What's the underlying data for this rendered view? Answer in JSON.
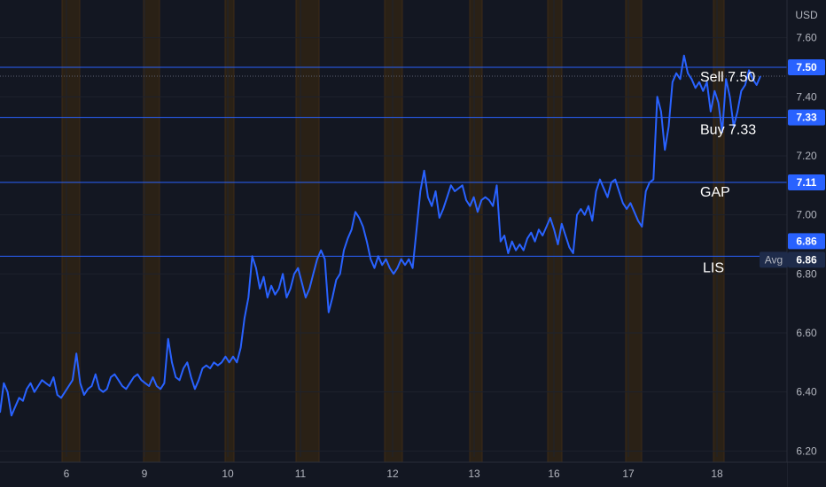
{
  "chart_data": {
    "type": "line",
    "currency": "USD",
    "y_axis": {
      "ticks": [
        "6.20",
        "6.40",
        "6.60",
        "6.80",
        "7.00",
        "7.20",
        "7.40",
        "7.60"
      ],
      "tick_values": [
        6.2,
        6.4,
        6.6,
        6.8,
        7.0,
        7.2,
        7.4,
        7.6
      ],
      "ylim": [
        6.18,
        7.68
      ]
    },
    "x_axis": {
      "ticks": [
        "6",
        "9",
        "10",
        "11",
        "12",
        "13",
        "16",
        "17",
        "18"
      ]
    },
    "colors": {
      "background": "#131722",
      "line": "#2962ff",
      "level": "#2962ff",
      "session_highlight": "#2a2116",
      "session_border": "#3c2a16",
      "grid": "#1e222d",
      "axis_text": "#b2b5be"
    },
    "levels": [
      {
        "label": "Sell 7.50",
        "value": 7.5,
        "price_tag": "7.50"
      },
      {
        "label": "Buy 7.33",
        "value": 7.33,
        "price_tag": "7.33"
      },
      {
        "label": "GAP",
        "value": 7.11,
        "price_tag": "7.11"
      },
      {
        "label": "LIS",
        "value": 6.86,
        "price_tag": "6.86"
      }
    ],
    "avg_marker": {
      "label": "Avg",
      "value": "6.86"
    },
    "series": [
      {
        "values": [
          6.33,
          6.43,
          6.4,
          6.32,
          6.35,
          6.38,
          6.37,
          6.41,
          6.43,
          6.4,
          6.42,
          6.44,
          6.43,
          6.42,
          6.45,
          6.39,
          6.38,
          6.4,
          6.42,
          6.44,
          6.53,
          6.43,
          6.39,
          6.41,
          6.42,
          6.46,
          6.41,
          6.4,
          6.41,
          6.45,
          6.46,
          6.44,
          6.42,
          6.41,
          6.43,
          6.45,
          6.46,
          6.44,
          6.43,
          6.42,
          6.45,
          6.42,
          6.41,
          6.43,
          6.58,
          6.5,
          6.45,
          6.44,
          6.48,
          6.5,
          6.45,
          6.41,
          6.44,
          6.48,
          6.49,
          6.48,
          6.5,
          6.49,
          6.5,
          6.52,
          6.5,
          6.52,
          6.5,
          6.55,
          6.65,
          6.72,
          6.86,
          6.82,
          6.75,
          6.79,
          6.72,
          6.76,
          6.73,
          6.75,
          6.8,
          6.72,
          6.75,
          6.8,
          6.82,
          6.77,
          6.72,
          6.75,
          6.8,
          6.85,
          6.88,
          6.85,
          6.67,
          6.72,
          6.78,
          6.8,
          6.88,
          6.92,
          6.95,
          7.01,
          6.99,
          6.96,
          6.91,
          6.85,
          6.82,
          6.86,
          6.83,
          6.85,
          6.82,
          6.8,
          6.82,
          6.85,
          6.83,
          6.85,
          6.82,
          6.95,
          7.08,
          7.15,
          7.06,
          7.03,
          7.08,
          6.99,
          7.02,
          7.06,
          7.1,
          7.08,
          7.09,
          7.1,
          7.05,
          7.03,
          7.06,
          7.01,
          7.05,
          7.06,
          7.05,
          7.03,
          7.1,
          6.91,
          6.93,
          6.87,
          6.91,
          6.88,
          6.9,
          6.88,
          6.92,
          6.94,
          6.91,
          6.95,
          6.93,
          6.96,
          6.99,
          6.95,
          6.9,
          6.97,
          6.93,
          6.89,
          6.87,
          7.0,
          7.02,
          7.0,
          7.03,
          6.98,
          7.08,
          7.12,
          7.09,
          7.06,
          7.11,
          7.12,
          7.08,
          7.04,
          7.02,
          7.04,
          7.01,
          6.98,
          6.96,
          7.08,
          7.11,
          7.12,
          7.4,
          7.35,
          7.22,
          7.3,
          7.45,
          7.48,
          7.46,
          7.54,
          7.48,
          7.46,
          7.43,
          7.45,
          7.42,
          7.45,
          7.35,
          7.42,
          7.38,
          7.28,
          7.46,
          7.4,
          7.3,
          7.35,
          7.42,
          7.44,
          7.49,
          7.46,
          7.44,
          7.47
        ]
      }
    ]
  }
}
